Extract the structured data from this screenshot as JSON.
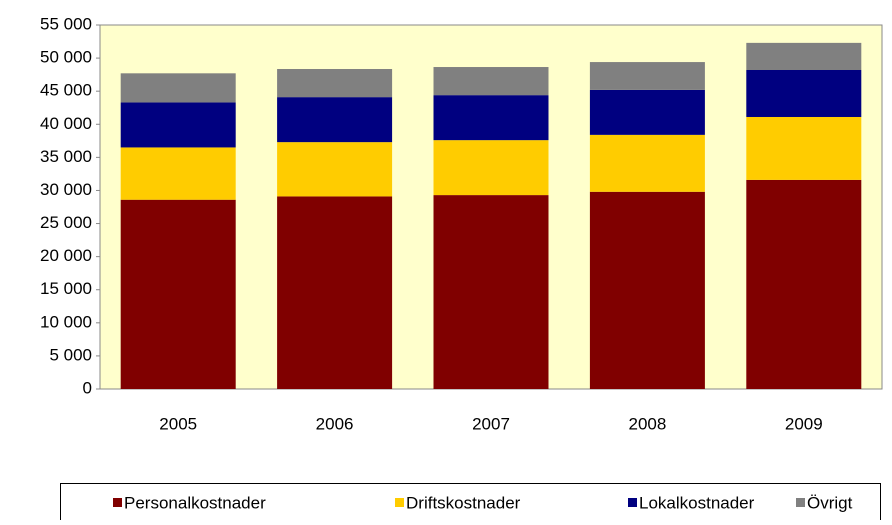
{
  "chart_data": {
    "type": "stacked_bar",
    "categories": [
      "2005",
      "2006",
      "2007",
      "2008",
      "2009"
    ],
    "series": [
      {
        "name": "Personalkostnader",
        "color": "#800000",
        "values": [
          28600,
          29100,
          29300,
          29800,
          31600
        ]
      },
      {
        "name": "Driftskostnader",
        "color": "#ffcc00",
        "values": [
          7900,
          8200,
          8300,
          8600,
          9500
        ]
      },
      {
        "name": "Lokalkostnader",
        "color": "#000080",
        "values": [
          6800,
          6800,
          6800,
          6800,
          7100
        ]
      },
      {
        "name": "Övrigt",
        "color": "#808080",
        "values": [
          4400,
          4250,
          4250,
          4200,
          4100
        ]
      }
    ],
    "ylim": [
      0,
      55000
    ],
    "yticks": [
      0,
      {
        "value": 5000,
        "label": "5 000"
      },
      {
        "value": 10000,
        "label": "10 000"
      },
      {
        "value": 15000,
        "label": "15 000"
      },
      {
        "value": 20000,
        "label": "20 000"
      },
      {
        "value": 25000,
        "label": "25 000"
      },
      {
        "value": 30000,
        "label": "30 000"
      },
      {
        "value": 35000,
        "label": "35 000"
      },
      {
        "value": 40000,
        "label": "40 000"
      },
      {
        "value": 45000,
        "label": "45 000"
      },
      {
        "value": 50000,
        "label": "50 000"
      },
      {
        "value": 55000,
        "label": "55 000"
      }
    ],
    "legend": "bottom"
  }
}
